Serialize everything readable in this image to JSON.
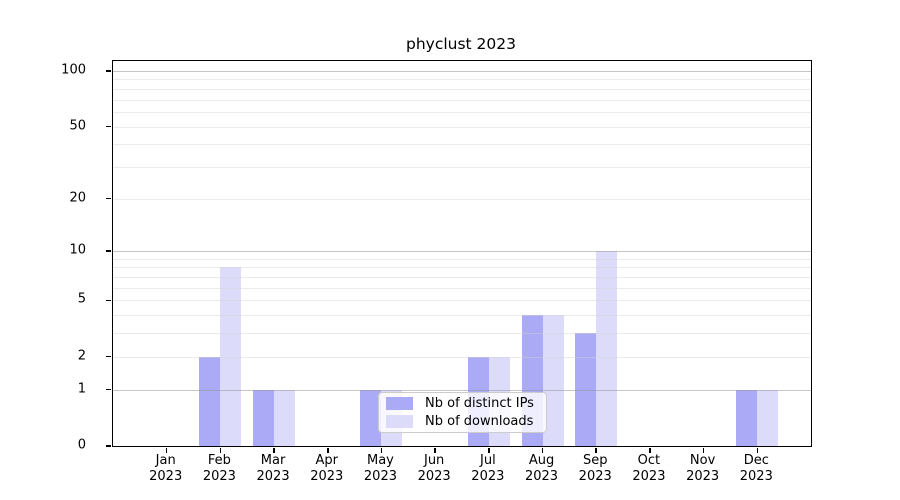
{
  "figure": {
    "title": "phyclust 2023"
  },
  "legend": {
    "items": [
      {
        "label": "Nb of distinct IPs",
        "color": "#aaaaf7"
      },
      {
        "label": "Nb of downloads",
        "color": "#dcdcfa"
      }
    ]
  },
  "chart_data": {
    "type": "bar",
    "title": "phyclust 2023",
    "categories": [
      {
        "month": "Jan",
        "year": "2023"
      },
      {
        "month": "Feb",
        "year": "2023"
      },
      {
        "month": "Mar",
        "year": "2023"
      },
      {
        "month": "Apr",
        "year": "2023"
      },
      {
        "month": "May",
        "year": "2023"
      },
      {
        "month": "Jun",
        "year": "2023"
      },
      {
        "month": "Jul",
        "year": "2023"
      },
      {
        "month": "Aug",
        "year": "2023"
      },
      {
        "month": "Sep",
        "year": "2023"
      },
      {
        "month": "Oct",
        "year": "2023"
      },
      {
        "month": "Nov",
        "year": "2023"
      },
      {
        "month": "Dec",
        "year": "2023"
      }
    ],
    "series": [
      {
        "name": "Nb of distinct IPs",
        "color": "#aaaaf7",
        "values": [
          0,
          2,
          1,
          0,
          1,
          0,
          2,
          4,
          3,
          0,
          0,
          1
        ]
      },
      {
        "name": "Nb of downloads",
        "color": "#dcdcfa",
        "values": [
          0,
          8,
          1,
          0,
          1,
          0,
          2,
          4,
          10,
          0,
          0,
          1
        ]
      }
    ],
    "yticks": [
      0,
      1,
      2,
      5,
      10,
      20,
      50,
      100
    ],
    "xlabel": "",
    "ylabel": "",
    "yscale": "log1p",
    "ylim": [
      0,
      113
    ],
    "grid": "horizontal, major at 1/10/100, minor at 2-9 and 20-90",
    "legend_position": "inside, lower middle"
  }
}
